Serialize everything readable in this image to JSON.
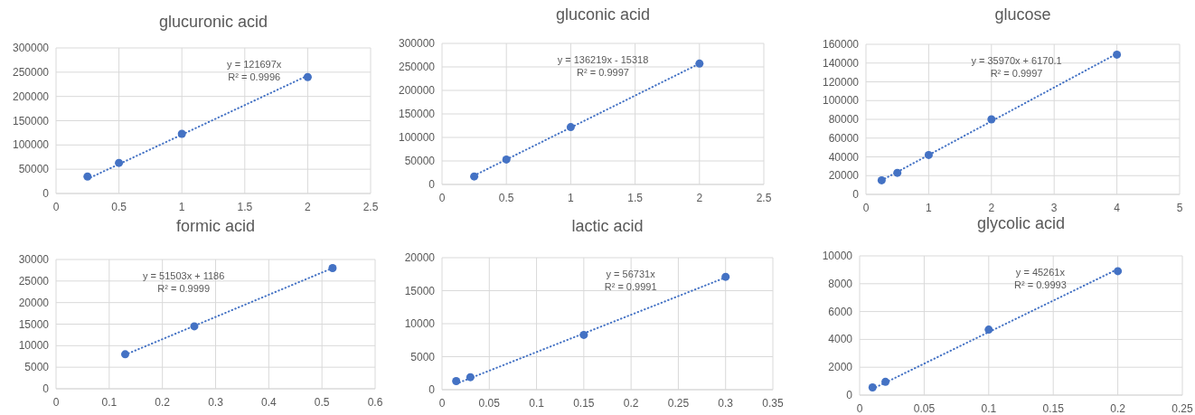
{
  "chart_data": [
    {
      "type": "scatter",
      "title": "glucuronic acid",
      "xlim": [
        0,
        2.5
      ],
      "xticks": [
        0,
        0.5,
        1,
        1.5,
        2,
        2.5
      ],
      "ylim": [
        0,
        300000
      ],
      "yticks": [
        0,
        50000,
        100000,
        150000,
        200000,
        250000,
        300000
      ],
      "grid": true,
      "marker": "circle",
      "annotations": [
        "y = 121697x",
        "R² = 0.9996"
      ],
      "series": [
        {
          "color": "#4472c4",
          "x": [
            0.25,
            0.5,
            1,
            2
          ],
          "values": [
            35000,
            63000,
            123000,
            240000
          ]
        },
        {
          "type": "line",
          "line_style": "dotted",
          "marker": "none",
          "color": "#4472c4",
          "x": [
            0.25,
            2
          ],
          "values": [
            30000,
            243000
          ]
        }
      ]
    },
    {
      "type": "scatter",
      "title": "gluconic acid",
      "xlim": [
        0,
        2.5
      ],
      "xticks": [
        0,
        0.5,
        1,
        1.5,
        2,
        2.5
      ],
      "ylim": [
        0,
        300000
      ],
      "yticks": [
        0,
        50000,
        100000,
        150000,
        200000,
        250000,
        300000
      ],
      "grid": true,
      "marker": "circle",
      "annotations": [
        "y = 136219x - 15318",
        "R² = 0.9997"
      ],
      "series": [
        {
          "color": "#4472c4",
          "x": [
            0.25,
            0.5,
            1,
            2
          ],
          "values": [
            17000,
            53000,
            122000,
            257000
          ]
        },
        {
          "type": "line",
          "line_style": "dotted",
          "marker": "none",
          "color": "#4472c4",
          "x": [
            0.25,
            2
          ],
          "values": [
            19000,
            257000
          ]
        }
      ]
    },
    {
      "type": "scatter",
      "title": "glucose",
      "xlim": [
        0,
        5
      ],
      "xticks": [
        0,
        1,
        2,
        3,
        4,
        5
      ],
      "ylim": [
        0,
        160000
      ],
      "yticks": [
        0,
        20000,
        40000,
        60000,
        80000,
        100000,
        120000,
        140000,
        160000
      ],
      "grid": true,
      "marker": "circle",
      "annotations": [
        "y = 35970x + 6170.1",
        "R² = 0.9997"
      ],
      "series": [
        {
          "color": "#4472c4",
          "x": [
            0.25,
            0.5,
            1,
            2,
            4
          ],
          "values": [
            15000,
            23000,
            42000,
            80000,
            149000
          ]
        },
        {
          "type": "line",
          "line_style": "dotted",
          "marker": "none",
          "color": "#4472c4",
          "x": [
            0.25,
            4
          ],
          "values": [
            15000,
            150000
          ]
        }
      ]
    },
    {
      "type": "scatter",
      "title": "formic acid",
      "xlim": [
        0,
        0.6
      ],
      "xticks": [
        0,
        0.1,
        0.2,
        0.3,
        0.4,
        0.5,
        0.6
      ],
      "ylim": [
        0,
        30000
      ],
      "yticks": [
        0,
        5000,
        10000,
        15000,
        20000,
        25000,
        30000
      ],
      "grid": true,
      "marker": "circle",
      "annotations": [
        "y = 51503x + 1186",
        "R² = 0.9999"
      ],
      "series": [
        {
          "color": "#4472c4",
          "x": [
            0.13,
            0.26,
            0.52
          ],
          "values": [
            8000,
            14500,
            28000
          ]
        },
        {
          "type": "line",
          "line_style": "dotted",
          "marker": "none",
          "color": "#4472c4",
          "x": [
            0.13,
            0.52
          ],
          "values": [
            7900,
            28000
          ]
        }
      ]
    },
    {
      "type": "scatter",
      "title": "lactic acid",
      "xlim": [
        0,
        0.35
      ],
      "xticks": [
        0,
        0.05,
        0.1,
        0.15,
        0.2,
        0.25,
        0.3,
        0.35
      ],
      "ylim": [
        0,
        20000
      ],
      "yticks": [
        0,
        5000,
        10000,
        15000,
        20000
      ],
      "grid": true,
      "marker": "circle",
      "annotations": [
        "y = 56731x",
        "R² = 0.9991"
      ],
      "series": [
        {
          "color": "#4472c4",
          "x": [
            0.015,
            0.03,
            0.15,
            0.3
          ],
          "values": [
            1300,
            1900,
            8300,
            17100
          ]
        },
        {
          "type": "line",
          "line_style": "dotted",
          "marker": "none",
          "color": "#4472c4",
          "x": [
            0.015,
            0.3
          ],
          "values": [
            900,
            17000
          ]
        }
      ]
    },
    {
      "type": "scatter",
      "title": "glycolic acid",
      "xlim": [
        0,
        0.25
      ],
      "xticks": [
        0,
        0.05,
        0.1,
        0.15,
        0.2,
        0.25
      ],
      "ylim": [
        0,
        10000
      ],
      "yticks": [
        0,
        2000,
        4000,
        6000,
        8000,
        10000
      ],
      "grid": true,
      "marker": "circle",
      "annotations": [
        "y = 45261x",
        "R² = 0.9993"
      ],
      "series": [
        {
          "color": "#4472c4",
          "x": [
            0.01,
            0.02,
            0.1,
            0.2
          ],
          "values": [
            550,
            950,
            4700,
            8900
          ]
        },
        {
          "type": "line",
          "line_style": "dotted",
          "marker": "none",
          "color": "#4472c4",
          "x": [
            0.01,
            0.2
          ],
          "values": [
            450,
            9050
          ]
        }
      ]
    }
  ]
}
